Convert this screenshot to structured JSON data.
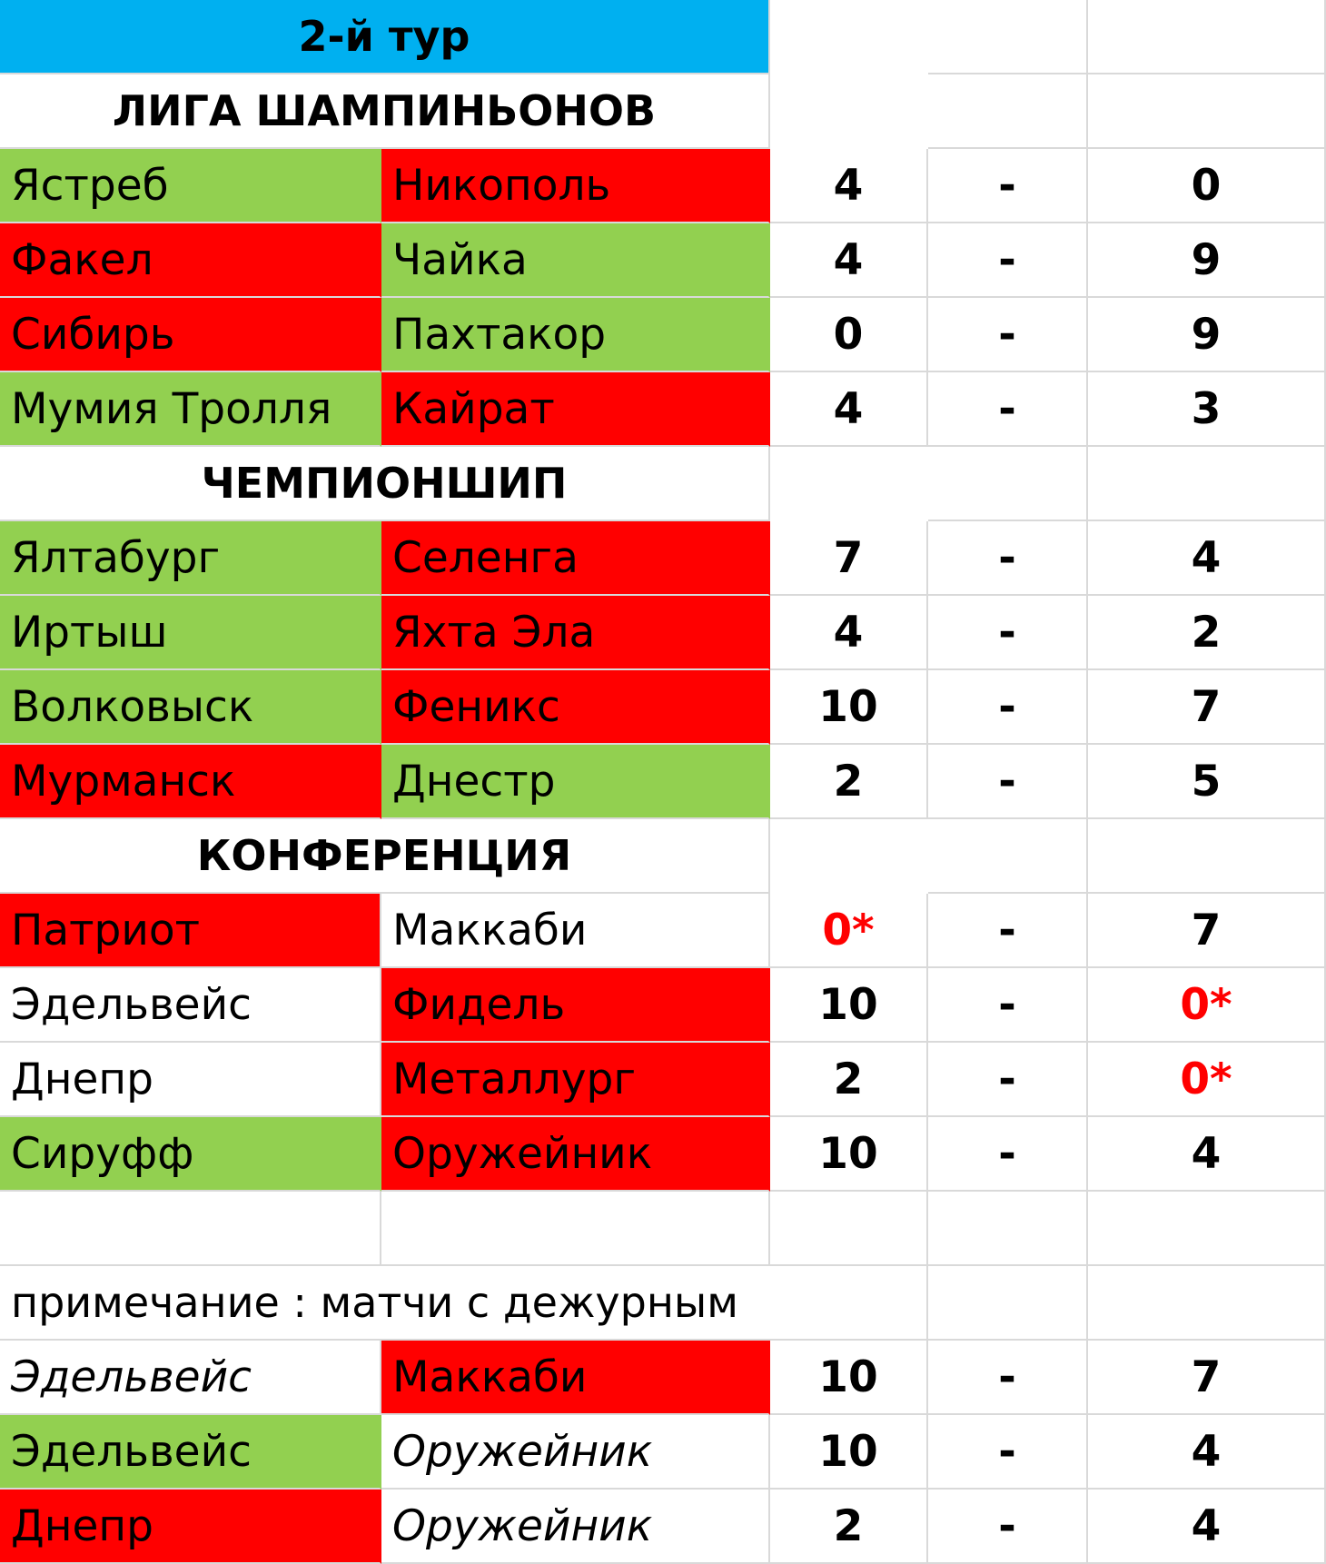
{
  "title": "2-й тур",
  "sections": [
    {
      "name": "ЛИГА ШАМПИНЬОНОВ",
      "matches": [
        {
          "home": "Ястреб",
          "away": "Никополь",
          "home_score": "4",
          "sep": "-",
          "away_score": "0"
        },
        {
          "home": "Факел",
          "away": "Чайка",
          "home_score": "4",
          "sep": "-",
          "away_score": "9"
        },
        {
          "home": "Сибирь",
          "away": "Пахтакор",
          "home_score": "0",
          "sep": "-",
          "away_score": "9"
        },
        {
          "home": "Мумия Тролля",
          "away": "Кайрат",
          "home_score": "4",
          "sep": "-",
          "away_score": "3"
        }
      ]
    },
    {
      "name": "ЧЕМПИОНШИП",
      "matches": [
        {
          "home": "Ялтабург",
          "away": "Селенга",
          "home_score": "7",
          "sep": "-",
          "away_score": "4"
        },
        {
          "home": "Иртыш",
          "away": "Яхта Эла",
          "home_score": "4",
          "sep": "-",
          "away_score": "2"
        },
        {
          "home": "Волковыск",
          "away": "Феникс",
          "home_score": "10",
          "sep": "-",
          "away_score": "7"
        },
        {
          "home": "Мурманск",
          "away": "Днестр",
          "home_score": "2",
          "sep": "-",
          "away_score": "5"
        }
      ]
    },
    {
      "name": "КОНФЕРЕНЦИЯ",
      "matches": [
        {
          "home": "Патриот",
          "away": "Маккаби",
          "home_score": "0*",
          "sep": "-",
          "away_score": "7"
        },
        {
          "home": "Эдельвейс",
          "away": "Фидель",
          "home_score": "10",
          "sep": "-",
          "away_score": "0*"
        },
        {
          "home": "Днепр",
          "away": "Металлург",
          "home_score": "2",
          "sep": "-",
          "away_score": "0*"
        },
        {
          "home": "Сируфф",
          "away": "Оружейник",
          "home_score": "10",
          "sep": "-",
          "away_score": "4"
        }
      ]
    }
  ],
  "note": {
    "text": "примечание : матчи с дежурным",
    "matches": [
      {
        "home": "Эдельвейс",
        "away": "Маккаби",
        "home_score": "10",
        "sep": "-",
        "away_score": "7"
      },
      {
        "home": "Эдельвейс",
        "away": "Оружейник",
        "home_score": "10",
        "sep": "-",
        "away_score": "4"
      },
      {
        "home": "Днепр",
        "away": "Оружейник",
        "home_score": "2",
        "sep": "-",
        "away_score": "4"
      }
    ]
  },
  "colors": {
    "win": "#92d050",
    "loss": "#ff0000",
    "header": "#00b0f0",
    "gridline": "#d9d9d9",
    "asterisk_score": "#ff0000"
  }
}
